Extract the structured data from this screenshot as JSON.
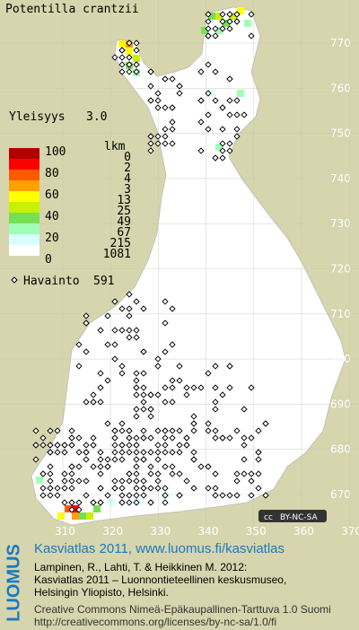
{
  "map": {
    "title": "Potentilla crantzii",
    "frequency_label": "Yleisyys",
    "frequency": "3.0",
    "legend": {
      "scale_labels": [
        "100",
        "80",
        "60",
        "40",
        "20",
        "0"
      ],
      "count_header": "lkm",
      "counts": [
        "0",
        "2",
        "4",
        "3",
        "13",
        "25",
        "49",
        "67",
        "215",
        "1081"
      ],
      "observation_label": "Havainto",
      "observation_count": "591"
    },
    "grid": {
      "y_labels": [
        "770",
        "760",
        "750",
        "740",
        "730",
        "720",
        "710",
        "700",
        "690",
        "680",
        "670"
      ],
      "x_labels": [
        "310",
        "320",
        "330",
        "340",
        "350",
        "360",
        "370"
      ]
    },
    "license_badge": "BY-NC-SA",
    "footer": {
      "brand": "LUOMUS",
      "heading": "Kasviatlas 2011, www.luomus.fi/kasviatlas",
      "citation": [
        "Lampinen, R., Lahti, T. & Heikkinen M. 2012:",
        "Kasviatlas 2011 – Luonnontieteellinen keskusmuseo,",
        "Helsingin Yliopisto, Helsinki."
      ],
      "license": [
        "Creative Commons Nimeä-Epäkaupallinen-Tarttuva 1.0 Suomi",
        "http://creativecommons.org/licenses/by-nc-sa/1.0/fi"
      ]
    }
  }
}
